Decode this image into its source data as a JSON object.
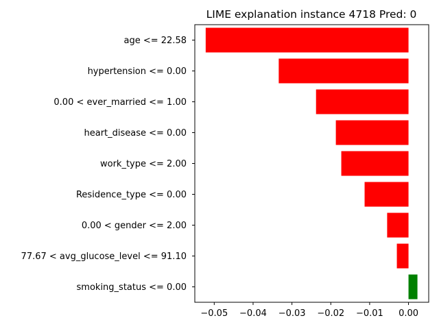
{
  "chart_data": {
    "type": "bar",
    "orientation": "horizontal",
    "title": "LIME explanation instance 4718 Pred: 0",
    "xlabel": "",
    "ylabel": "",
    "categories": [
      "age <= 22.58",
      "hypertension <= 0.00",
      "0.00 < ever_married <= 1.00",
      "heart_disease <= 0.00",
      "work_type <= 2.00",
      "Residence_type <= 0.00",
      "0.00 < gender <= 2.00",
      "77.67 < avg_glucose_level <= 91.10",
      "smoking_status <= 0.00"
    ],
    "values": [
      -0.0522,
      -0.0334,
      -0.0238,
      -0.0187,
      -0.0173,
      -0.0113,
      -0.0055,
      -0.003,
      0.0023
    ],
    "xlim": [
      -0.055,
      0.0052
    ],
    "xticks": [
      -0.05,
      -0.04,
      -0.03,
      -0.02,
      -0.01,
      0.0
    ],
    "xtick_labels": [
      "−0.05",
      "−0.04",
      "−0.03",
      "−0.02",
      "−0.01",
      "0.00"
    ],
    "grid": false,
    "colors": {
      "negative": "#ff0000",
      "positive": "#008000",
      "axis": "#000000"
    }
  }
}
